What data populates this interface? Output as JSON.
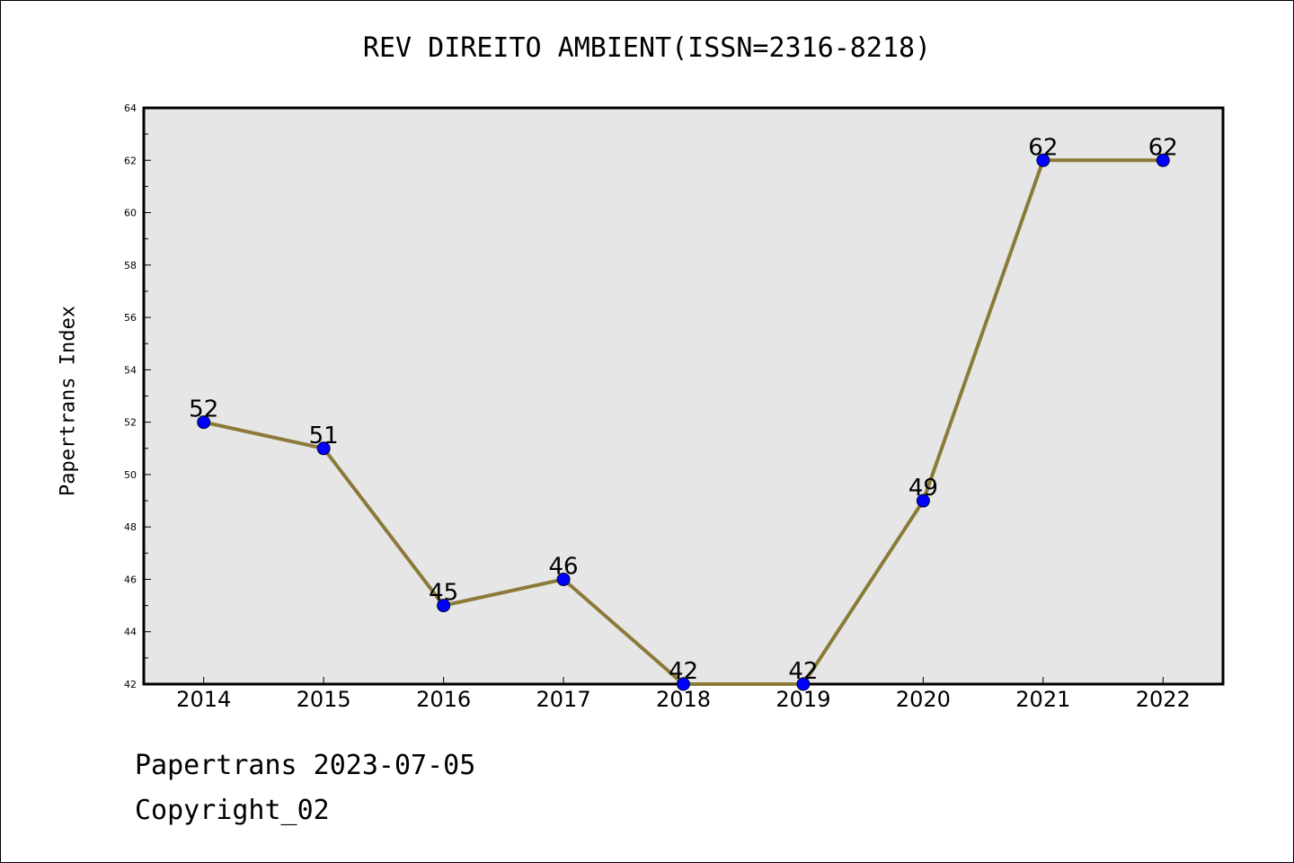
{
  "chart_data": {
    "type": "line",
    "title": "REV DIREITO AMBIENT(ISSN=2316-8218)",
    "ylabel": "Papertrans Index",
    "xlabel": "",
    "categories": [
      "2014",
      "2015",
      "2016",
      "2017",
      "2018",
      "2019",
      "2020",
      "2021",
      "2022"
    ],
    "series": [
      {
        "values": [
          52,
          51,
          45,
          46,
          42,
          42,
          49,
          62,
          62
        ]
      }
    ],
    "ylim": [
      42,
      64
    ],
    "yticks": [
      42,
      44,
      46,
      48,
      50,
      52,
      54,
      56,
      58,
      60,
      62,
      64
    ],
    "grid": false,
    "colors": {
      "line": "#8B7A3A",
      "marker": "#0000FF",
      "plot_bg": "#E6E6E6"
    }
  },
  "footer": {
    "line1": "Papertrans 2023-07-05",
    "line2": "Copyright_02"
  }
}
